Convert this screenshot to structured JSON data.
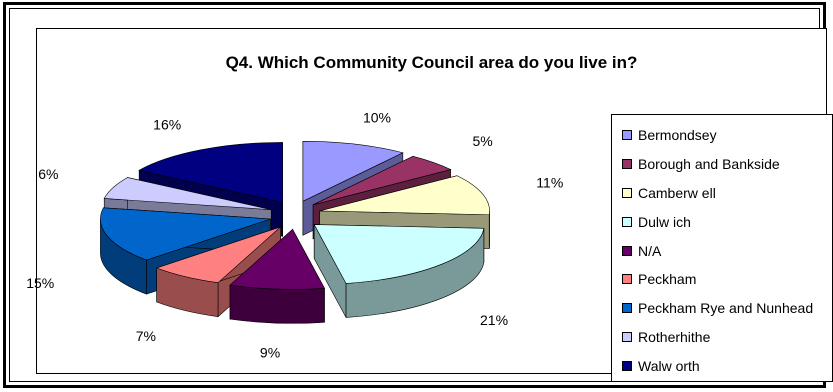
{
  "chart_data": {
    "type": "pie",
    "title": "Q4. Which Community Council area do you live in?",
    "legend_position": "right",
    "slices": [
      {
        "name": "Bermondsey",
        "display_name": "Bermondsey",
        "value": 10,
        "label": "10%",
        "color": "#9999ff",
        "side": "#5c5c99"
      },
      {
        "name": "Borough and Bankside",
        "display_name": "Borough and Bankside",
        "value": 5,
        "label": "5%",
        "color": "#993366",
        "side": "#5c1f3d"
      },
      {
        "name": "Camberwell",
        "display_name": "Camberw ell",
        "value": 11,
        "label": "11%",
        "color": "#ffffcc",
        "side": "#99997a"
      },
      {
        "name": "Dulwich",
        "display_name": "Dulw ich",
        "value": 21,
        "label": "21%",
        "color": "#ccffff",
        "side": "#7a9999"
      },
      {
        "name": "N/A",
        "display_name": "N/A",
        "value": 9,
        "label": "9%",
        "color": "#660066",
        "side": "#3d003d"
      },
      {
        "name": "Peckham",
        "display_name": "Peckham",
        "value": 7,
        "label": "7%",
        "color": "#ff8080",
        "side": "#994d4d"
      },
      {
        "name": "Peckham Rye and Nunhead",
        "display_name": "Peckham Rye and Nunhead",
        "value": 15,
        "label": "15%",
        "color": "#0066cc",
        "side": "#003d7a"
      },
      {
        "name": "Rotherhithe",
        "display_name": "Rotherhithe",
        "value": 6,
        "label": "6%",
        "color": "#ccccff",
        "side": "#7a7a99"
      },
      {
        "name": "Walworth",
        "display_name": "Walw orth",
        "value": 16,
        "label": "16%",
        "color": "#000080",
        "side": "#00004d"
      }
    ]
  }
}
